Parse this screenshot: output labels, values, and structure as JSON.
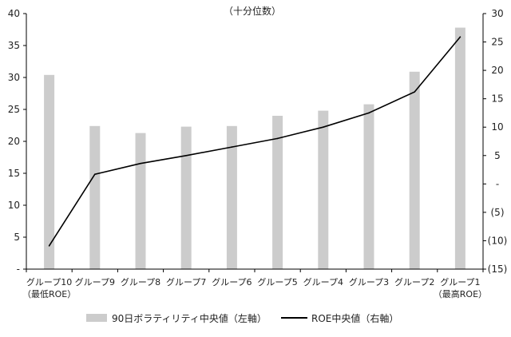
{
  "chart_data": {
    "type": "bar+line",
    "subtitle": "（十分位数）",
    "categories": [
      [
        "グループ10",
        "（最低ROE）"
      ],
      [
        "グループ9"
      ],
      [
        "グループ8"
      ],
      [
        "グループ7"
      ],
      [
        "グループ6"
      ],
      [
        "グループ5"
      ],
      [
        "グループ4"
      ],
      [
        "グループ3"
      ],
      [
        "グループ2"
      ],
      [
        "グループ1",
        "（最高ROE）"
      ]
    ],
    "left_axis": {
      "ylim": [
        0,
        40
      ],
      "ticks": [
        0,
        5,
        10,
        15,
        20,
        25,
        30,
        35,
        40
      ],
      "tick_labels": [
        "-",
        "5",
        "10",
        "15",
        "20",
        "25",
        "30",
        "35",
        "40"
      ]
    },
    "right_axis": {
      "ylim": [
        -15,
        30
      ],
      "ticks": [
        -15,
        -10,
        -5,
        0,
        5,
        10,
        15,
        20,
        25,
        30
      ],
      "tick_labels": [
        "(15)",
        "(10)",
        "(5)",
        "-",
        "5",
        "10",
        "15",
        "20",
        "25",
        "30"
      ]
    },
    "series": [
      {
        "name": "90日ボラティリティ中央値（左軸）",
        "type": "bar",
        "axis": "left",
        "color": "#cccccc",
        "values": [
          30.4,
          22.4,
          21.3,
          22.3,
          22.4,
          24.0,
          24.8,
          25.8,
          30.9,
          37.8
        ]
      },
      {
        "name": "ROE中央値（右軸）",
        "type": "line",
        "axis": "right",
        "color": "#000000",
        "values": [
          -10.9,
          1.7,
          3.6,
          5.0,
          6.5,
          8.0,
          10.0,
          12.5,
          16.2,
          25.9
        ]
      }
    ],
    "grid": false,
    "legend_position": "bottom"
  }
}
